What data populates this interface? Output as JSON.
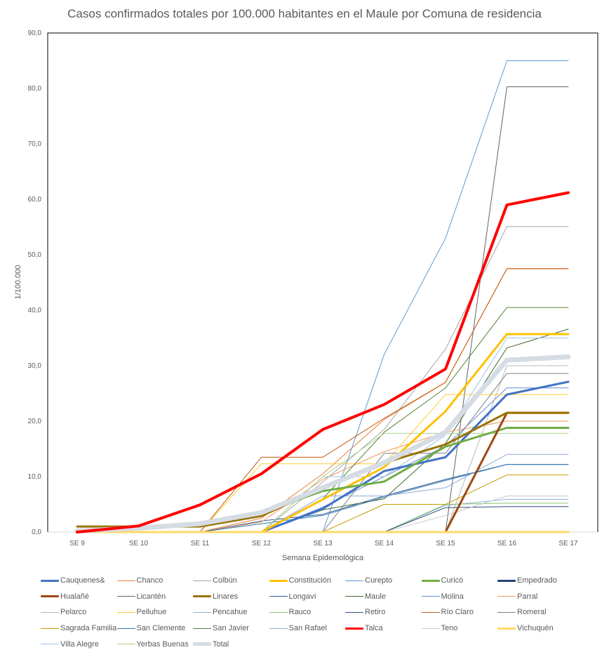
{
  "chart_data": {
    "type": "line",
    "title": "Casos confirmados totales por 100.000 habitantes en el Maule por Comuna de residencia",
    "xlabel": "Semana Epidemológica",
    "ylabel": "1/100.000",
    "ylim": [
      0,
      90
    ],
    "yticks": [
      "0,0",
      "10,0",
      "20,0",
      "30,0",
      "40,0",
      "50,0",
      "60,0",
      "70,0",
      "80,0",
      "90,0"
    ],
    "ytick_values": [
      0,
      10,
      20,
      30,
      40,
      50,
      60,
      70,
      80,
      90
    ],
    "categories": [
      "SE 9",
      "SE 10",
      "SE 11",
      "SE 12",
      "SE 13",
      "SE 14",
      "SE 15",
      "SE 16",
      "SE 17"
    ],
    "grid": false,
    "legend_position": "bottom",
    "series": [
      {
        "name": "Cauquenes&",
        "color": "#4472C4",
        "bold": true,
        "values": [
          0,
          0,
          0,
          0,
          4.2,
          11.0,
          13.5,
          24.8,
          27.1
        ]
      },
      {
        "name": "Chanco",
        "color": "#ED7D31",
        "bold": false,
        "values": [
          0,
          0,
          0,
          2.5,
          10.5,
          20.3,
          27.0,
          47.5,
          47.5
        ]
      },
      {
        "name": "Colbún",
        "color": "#A5A5A5",
        "bold": false,
        "values": [
          0,
          0,
          0,
          0,
          9.0,
          18.5,
          33.0,
          55.1,
          55.1
        ]
      },
      {
        "name": "Constitución",
        "color": "#FFC000",
        "bold": true,
        "values": [
          0,
          0,
          0,
          0,
          5.9,
          11.7,
          21.8,
          35.7,
          35.7
        ]
      },
      {
        "name": "Curepto",
        "color": "#5B9BD5",
        "bold": false,
        "values": [
          0,
          0,
          0,
          0,
          0,
          32.0,
          53.0,
          85.0,
          85.0
        ]
      },
      {
        "name": "Curicó",
        "color": "#70AD47",
        "bold": true,
        "values": [
          0,
          0.7,
          1.6,
          3.5,
          7.4,
          9.1,
          15.4,
          18.8,
          18.8
        ]
      },
      {
        "name": "Empedrado",
        "color": "#264478",
        "bold": true,
        "values": [
          0,
          0,
          0,
          0,
          0,
          0,
          0,
          0,
          0
        ]
      },
      {
        "name": "Hualañé",
        "color": "#9E480E",
        "bold": true,
        "values": [
          0,
          0,
          0,
          0,
          0,
          0,
          0,
          21.5,
          21.5
        ]
      },
      {
        "name": "Licantén",
        "color": "#636363",
        "bold": false,
        "values": [
          0,
          0,
          0,
          0,
          0,
          0,
          0,
          80.3,
          80.3
        ]
      },
      {
        "name": "Linares",
        "color": "#997300",
        "bold": true,
        "values": [
          1.0,
          1.0,
          1.0,
          2.9,
          8.0,
          12.5,
          15.8,
          21.5,
          21.5
        ]
      },
      {
        "name": "Longaví",
        "color": "#255E91",
        "bold": false,
        "values": [
          0,
          0,
          0,
          2.0,
          3.2,
          6.5,
          9.5,
          12.2,
          12.2
        ]
      },
      {
        "name": "Maule",
        "color": "#43682B",
        "bold": false,
        "values": [
          0,
          0,
          0,
          0,
          4.0,
          6.0,
          16.0,
          33.2,
          36.6
        ]
      },
      {
        "name": "Molina",
        "color": "#698ED0",
        "bold": false,
        "values": [
          0,
          0,
          0,
          0,
          4.5,
          10.0,
          15.5,
          26.0,
          26.0
        ]
      },
      {
        "name": "Parral",
        "color": "#F1975A",
        "bold": false,
        "values": [
          0,
          0,
          0,
          1.8,
          9.5,
          14.5,
          18.0,
          20.0,
          20.0
        ]
      },
      {
        "name": "Pelarco",
        "color": "#B7B7B7",
        "bold": false,
        "values": [
          0,
          0,
          0,
          0,
          0,
          0,
          0,
          30.0,
          30.0
        ]
      },
      {
        "name": "Pelluhue",
        "color": "#FFCD33",
        "bold": false,
        "values": [
          0,
          0,
          0,
          12.3,
          12.3,
          12.3,
          24.8,
          24.8,
          24.8
        ]
      },
      {
        "name": "Pencahue",
        "color": "#8CB4DF",
        "bold": false,
        "values": [
          0,
          0,
          0,
          0,
          0,
          0,
          4.8,
          5.9,
          5.9
        ]
      },
      {
        "name": "Rauco",
        "color": "#8BC168",
        "bold": false,
        "values": [
          0,
          0,
          0,
          0,
          0,
          0,
          5.0,
          5.2,
          5.2
        ]
      },
      {
        "name": "Retiro",
        "color": "#2E4A7D",
        "bold": false,
        "values": [
          0,
          0,
          0,
          0,
          0,
          0,
          4.4,
          4.6,
          4.6
        ]
      },
      {
        "name": "Río Claro",
        "color": "#C55A11",
        "bold": false,
        "values": [
          0,
          0,
          0,
          13.5,
          13.5,
          20.5,
          27.0,
          47.5,
          47.5
        ]
      },
      {
        "name": "Romeral",
        "color": "#7F7F7F",
        "bold": false,
        "values": [
          0,
          0,
          0,
          0,
          0,
          14.2,
          14.2,
          28.6,
          28.6
        ]
      },
      {
        "name": "Sagrada Familia",
        "color": "#C49A00",
        "bold": false,
        "values": [
          0,
          0,
          0,
          0,
          0,
          5.0,
          5.0,
          10.3,
          10.3
        ]
      },
      {
        "name": "San Clemente",
        "color": "#2F75B5",
        "bold": false,
        "values": [
          0,
          0,
          0,
          1.5,
          3.0,
          6.3,
          9.3,
          12.2,
          12.2
        ]
      },
      {
        "name": "San Javier",
        "color": "#548235",
        "bold": false,
        "values": [
          0,
          0,
          0,
          0,
          6.0,
          18.0,
          26.0,
          40.5,
          40.5
        ]
      },
      {
        "name": "San Rafael",
        "color": "#8EA9DB",
        "bold": false,
        "values": [
          0,
          0,
          0,
          0,
          6.5,
          6.5,
          8.0,
          14.0,
          14.0
        ]
      },
      {
        "name": "Talca",
        "color": "#FF0000",
        "bold": true,
        "values": [
          0,
          1.1,
          4.9,
          10.5,
          18.5,
          23.0,
          29.4,
          59.0,
          61.2
        ]
      },
      {
        "name": "Teno",
        "color": "#C9C9C9",
        "bold": false,
        "values": [
          0,
          0,
          0,
          0,
          0,
          0,
          3.0,
          6.5,
          6.5
        ]
      },
      {
        "name": "Vichuquén",
        "color": "#FFD966",
        "bold": true,
        "values": [
          0,
          0,
          0,
          0,
          0,
          0,
          0,
          0,
          0
        ]
      },
      {
        "name": "Villa Alegre",
        "color": "#9DC3E6",
        "bold": false,
        "values": [
          0,
          0,
          0,
          0,
          10.0,
          10.0,
          17.5,
          35.0,
          35.0
        ]
      },
      {
        "name": "Yerbas Buenas",
        "color": "#A9D18E",
        "bold": false,
        "values": [
          0,
          0,
          0,
          0,
          10.0,
          17.8,
          17.8,
          17.8,
          17.8
        ]
      },
      {
        "name": "Total",
        "color": "#D6DCE4",
        "bold": true,
        "total": true,
        "values": [
          0.2,
          0.7,
          1.5,
          3.5,
          8.0,
          12.5,
          18.0,
          31.0,
          31.6
        ]
      }
    ]
  }
}
